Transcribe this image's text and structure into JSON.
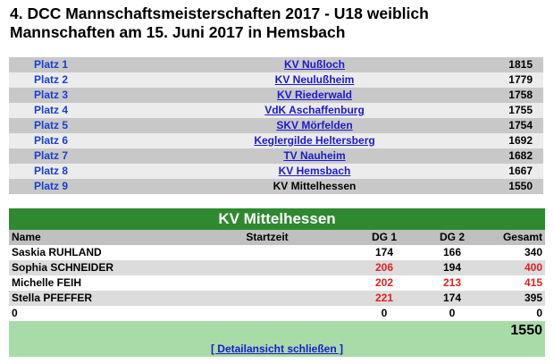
{
  "page": {
    "title_line1": "4. DCC Mannschaftsmeisterschaften 2017 - U18 weiblich",
    "title_line2": "Mannschaften am 15. Juni 2017 in Hemsbach"
  },
  "ranking": [
    {
      "place": "Platz 1",
      "team": "KV Nußloch",
      "score": "1815"
    },
    {
      "place": "Platz 2",
      "team": "KV Neulußheim",
      "score": "1779"
    },
    {
      "place": "Platz 3",
      "team": "KV Riederwald",
      "score": "1758"
    },
    {
      "place": "Platz 4",
      "team": "VdK Aschaffenburg",
      "score": "1755"
    },
    {
      "place": "Platz 5",
      "team": "SKV Mörfelden",
      "score": "1754"
    },
    {
      "place": "Platz 6",
      "team": "Keglergilde Heltersberg",
      "score": "1692"
    },
    {
      "place": "Platz 7",
      "team": "TV Nauheim",
      "score": "1682"
    },
    {
      "place": "Platz 8",
      "team": "KV Hemsbach",
      "score": "1667"
    },
    {
      "place": "Platz 9",
      "team": "KV Mittelhessen",
      "score": "1550"
    }
  ],
  "detail": {
    "team_name": "KV Mittelhessen",
    "columns": {
      "name": "Name",
      "start": "Startzeit",
      "dg1": "DG 1",
      "dg2": "DG 2",
      "total": "Gesamt"
    },
    "players": [
      {
        "name": "Saskia RUHLAND",
        "start": "",
        "dg1": "174",
        "dg2": "166",
        "total": "340"
      },
      {
        "name": "Sophia SCHNEIDER",
        "start": "",
        "dg1": "206",
        "dg2": "194",
        "total": "400"
      },
      {
        "name": "Michelle FEIH",
        "start": "",
        "dg1": "202",
        "dg2": "213",
        "total": "415"
      },
      {
        "name": "Stella PFEFFER",
        "start": "",
        "dg1": "221",
        "dg2": "174",
        "total": "395"
      },
      {
        "name": "0",
        "start": "",
        "dg1": "0",
        "dg2": "0",
        "total": "0"
      }
    ],
    "team_total": "1550",
    "close_label": "[ Detailansicht schließen ]"
  },
  "colors": {
    "header_green": "#2f8a2f",
    "footer_green": "#a9dba9",
    "highlight_red": "#e02020",
    "link_blue": "#1a1acc"
  }
}
